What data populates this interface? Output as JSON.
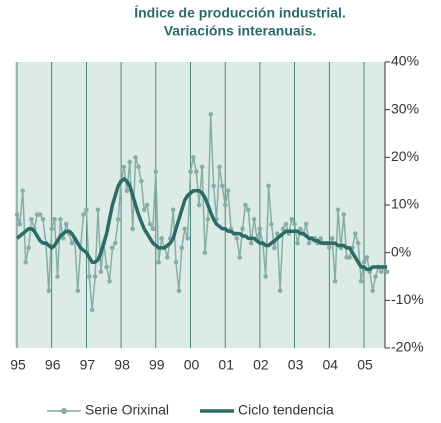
{
  "chart_data": {
    "type": "line",
    "title": [
      "Índice de producción industrial.",
      "Variacións interanuais."
    ],
    "categories": [
      "95",
      null,
      null,
      null,
      null,
      null,
      null,
      null,
      null,
      null,
      null,
      null,
      "96",
      null,
      null,
      null,
      null,
      null,
      null,
      null,
      null,
      null,
      null,
      null,
      "97",
      null,
      null,
      null,
      null,
      null,
      null,
      null,
      null,
      null,
      null,
      null,
      "98",
      null,
      null,
      null,
      null,
      null,
      null,
      null,
      null,
      null,
      null,
      null,
      "99",
      null,
      null,
      null,
      null,
      null,
      null,
      null,
      null,
      null,
      null,
      null,
      "00",
      null,
      null,
      null,
      null,
      null,
      null,
      null,
      null,
      null,
      null,
      null,
      "01",
      null,
      null,
      null,
      null,
      null,
      null,
      null,
      null,
      null,
      null,
      null,
      "02",
      null,
      null,
      null,
      null,
      null,
      null,
      null,
      null,
      null,
      null,
      null,
      "03",
      null,
      null,
      null,
      null,
      null,
      null,
      null,
      null,
      null,
      null,
      null,
      "04",
      null,
      null,
      null,
      null,
      null,
      null,
      null,
      null,
      null,
      null,
      null,
      "05",
      null,
      null,
      null,
      null,
      null,
      null,
      null,
      null
    ],
    "series": [
      {
        "name": "Serie Orixinal",
        "color": "#86aea6",
        "markers": true,
        "values": [
          8,
          6,
          13,
          -2,
          1,
          7,
          5,
          8,
          8,
          7,
          2,
          -8,
          5,
          7,
          -5,
          7,
          3,
          6,
          4,
          2,
          3,
          -8,
          1,
          8,
          9,
          -5,
          -12,
          -5,
          9,
          -4,
          2,
          -3,
          -6,
          1,
          2,
          7,
          15,
          18,
          13,
          19,
          5,
          20,
          18,
          15,
          9,
          10,
          6,
          5,
          17,
          -2,
          3,
          1,
          -1,
          3,
          9,
          -2,
          -8,
          1,
          5,
          3,
          17,
          20,
          17,
          10,
          18,
          0,
          7,
          29,
          14,
          7,
          18,
          14,
          10,
          13,
          5,
          4,
          3,
          -1,
          5,
          10,
          9,
          2,
          7,
          3,
          5,
          2,
          -5,
          14,
          6,
          1,
          4,
          -8,
          5,
          6,
          4,
          7,
          6,
          2,
          5,
          4,
          6,
          2,
          3,
          3,
          2,
          3,
          2,
          2,
          1,
          3,
          -6,
          9,
          1,
          8,
          -1,
          -1,
          1,
          4,
          2,
          -6,
          -2,
          -1,
          -4,
          -8,
          -5,
          -3,
          -4,
          -3,
          -4
        ]
      },
      {
        "name": "Ciclo tendencia",
        "color": "#2b6b65",
        "markers": false,
        "values": [
          3,
          3.5,
          4,
          4.5,
          5,
          5,
          4.5,
          3.5,
          2.5,
          2,
          2,
          1.5,
          1,
          1.5,
          2.5,
          3.5,
          4,
          4.5,
          4.5,
          4,
          3,
          2,
          1,
          0.5,
          0,
          -1,
          -2,
          -2,
          -1.5,
          0,
          2,
          4,
          7,
          10,
          12,
          14,
          15,
          15.5,
          15,
          14,
          12,
          10,
          8,
          6.5,
          5,
          4,
          3,
          2,
          1.5,
          1,
          1,
          1,
          1.5,
          2,
          3,
          5,
          7,
          9,
          11,
          12,
          12.5,
          13,
          13,
          13,
          12.5,
          11.5,
          10,
          8.5,
          7,
          6,
          5.5,
          5,
          5,
          4.5,
          4.5,
          4,
          4,
          4,
          3.5,
          3.5,
          3,
          3,
          3,
          2.5,
          2,
          2,
          1.5,
          1.5,
          2,
          2.5,
          3,
          3.5,
          4,
          4.5,
          4.5,
          4.5,
          4.5,
          4.5,
          4,
          4,
          3.5,
          3,
          3,
          2.5,
          2.5,
          2,
          2,
          2,
          2,
          2,
          2,
          1.5,
          1.5,
          1.5,
          1,
          1,
          0,
          -1,
          -2,
          -3,
          -3,
          -3.5,
          -3.5,
          -3,
          -3,
          -3,
          -3,
          -3,
          -3
        ]
      }
    ],
    "ylim": [
      -20,
      40
    ],
    "yticks": [
      {
        "value": -20,
        "label": "-20%"
      },
      {
        "value": -10,
        "label": "-10%"
      },
      {
        "value": 0,
        "label": "0%"
      },
      {
        "value": 10,
        "label": "10%"
      },
      {
        "value": 20,
        "label": "20%"
      },
      {
        "value": 30,
        "label": "30%"
      },
      {
        "value": 40,
        "label": "40%"
      }
    ],
    "grid": true
  }
}
